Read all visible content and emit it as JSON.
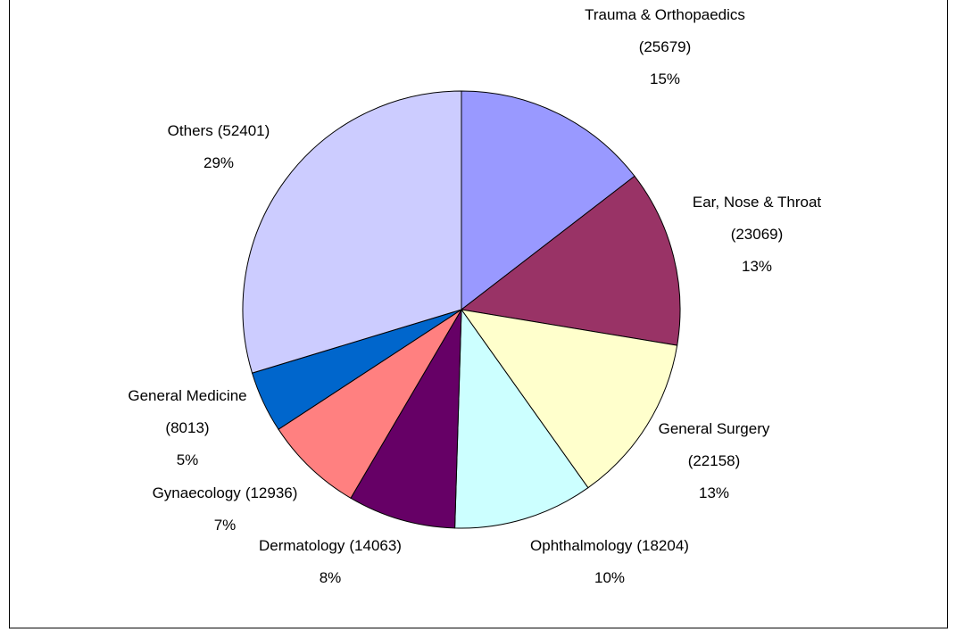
{
  "chart_data": {
    "type": "pie",
    "categories": [
      "Trauma & Orthopaedics",
      "Ear, Nose & Throat",
      "General Surgery",
      "Ophthalmology",
      "Dermatology",
      "Gynaecology",
      "General Medicine",
      "Others"
    ],
    "values": [
      25679,
      23069,
      22158,
      18204,
      14063,
      12936,
      8013,
      52401
    ],
    "value_labels": [
      "(25679)",
      "(23069)",
      "(22158)",
      "(18204)",
      "(14063)",
      "(12936)",
      "(8013)",
      "(52401)"
    ],
    "percent_labels": [
      "15%",
      "13%",
      "13%",
      "10%",
      "8%",
      "7%",
      "5%",
      "29%"
    ],
    "colors": [
      "#9999ff",
      "#993366",
      "#ffffcc",
      "#ccffff",
      "#660066",
      "#ff8080",
      "#0066cc",
      "#ccccff"
    ]
  }
}
